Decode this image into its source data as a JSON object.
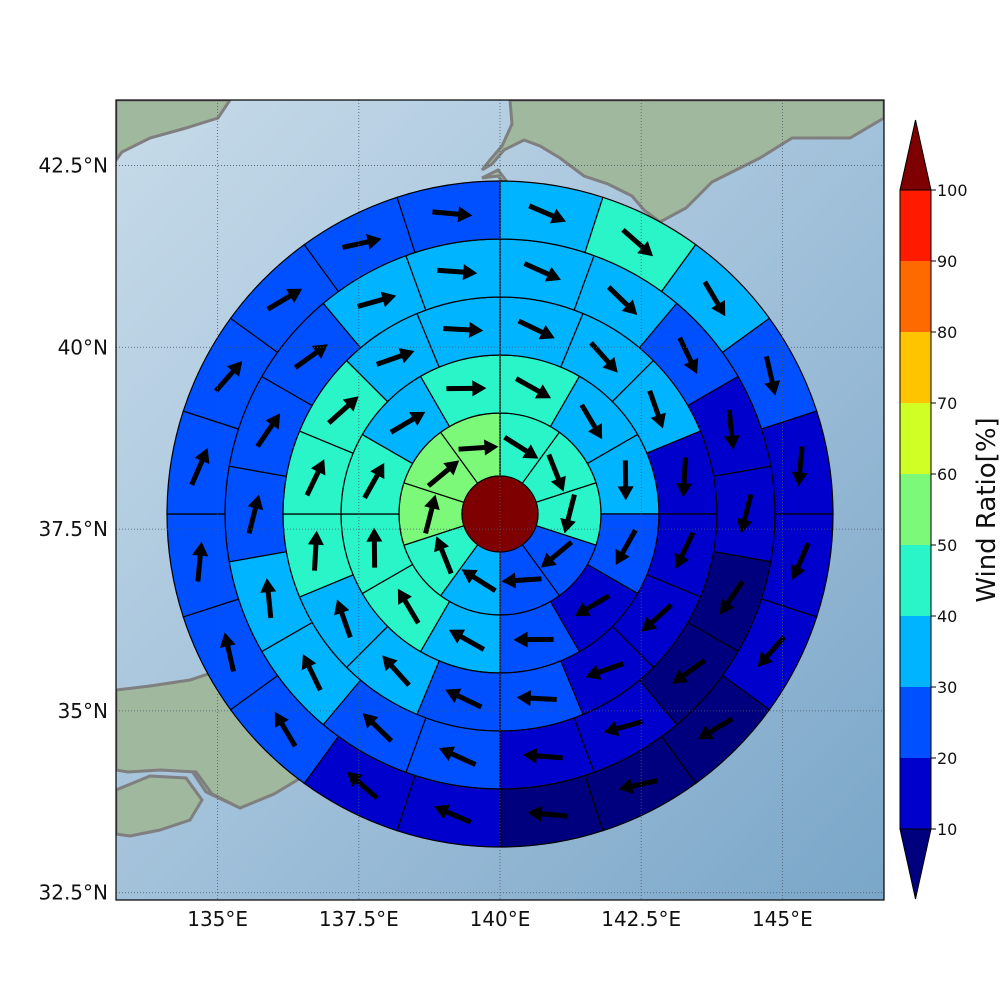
{
  "map": {
    "lon_ticks": [
      "135°E",
      "137.5°E",
      "140°E",
      "142.5°E",
      "145°E"
    ],
    "lat_ticks": [
      "42.5°N",
      "40°N",
      "37.5°N",
      "35°N",
      "32.5°N"
    ],
    "lon_values": [
      135,
      137.5,
      140,
      142.5,
      145
    ],
    "lat_values": [
      42.5,
      40,
      37.5,
      35,
      32.5
    ],
    "lon_range": [
      133.2,
      146.8
    ],
    "lat_range": [
      32.4,
      43.4
    ],
    "center_cell_color": "#7f0000",
    "sea_color": "#9bbcd8",
    "land_color": "#9bb69b",
    "coast_color": "#7f7f7f"
  },
  "rings": [
    {
      "ratios": [
        45,
        45,
        45,
        25,
        25,
        35,
        45,
        55,
        55,
        55
      ]
    },
    {
      "ratios": [
        45,
        35,
        35,
        25,
        15,
        25,
        35,
        45,
        45,
        45,
        35,
        45
      ]
    },
    {
      "ratios": [
        35,
        35,
        35,
        15,
        15,
        15,
        15,
        25,
        25,
        35,
        35,
        45,
        45,
        45,
        35,
        35
      ]
    },
    {
      "ratios": [
        35,
        35,
        25,
        15,
        15,
        5,
        5,
        15,
        15,
        25,
        25,
        35,
        35,
        25,
        25,
        25,
        35,
        35
      ]
    },
    {
      "ratios": [
        35,
        45,
        35,
        25,
        15,
        15,
        15,
        5,
        5,
        5,
        15,
        15,
        25,
        25,
        25,
        25,
        25,
        25,
        25,
        25
      ]
    }
  ],
  "colorbar": {
    "title": "Wind Ratio[%]",
    "tick_labels": [
      "10",
      "20",
      "30",
      "40",
      "50",
      "60",
      "70",
      "80",
      "90",
      "100"
    ],
    "bands": [
      "#0000cc",
      "#0050ff",
      "#00b4ff",
      "#2af5c8",
      "#7df97a",
      "#d0ff26",
      "#ffc400",
      "#ff6a00",
      "#ff1a00"
    ],
    "under_color": "#00007f",
    "over_color": "#7f0000"
  }
}
